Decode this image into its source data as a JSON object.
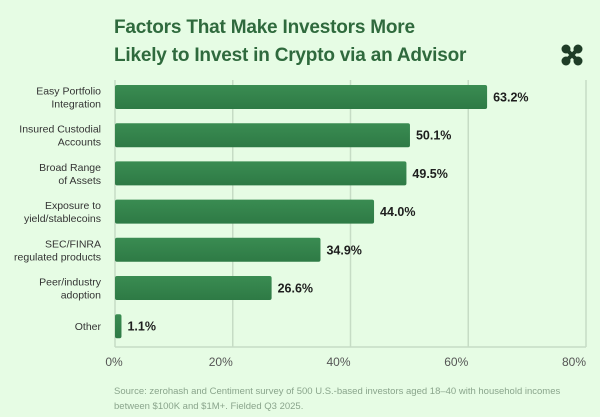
{
  "chart_data": {
    "type": "bar",
    "orientation": "horizontal",
    "title": "Factors That Make Investors More Likely to Invest in Crypto via an Advisor",
    "title_lines": [
      "Factors That Make Investors More",
      "Likely to Invest in Crypto via an Advisor"
    ],
    "categories": [
      [
        "Easy Portfolio",
        "Integration"
      ],
      [
        "Insured Custodial",
        "Accounts"
      ],
      [
        "Broad Range",
        "of Assets"
      ],
      [
        "Exposure to",
        "yield/stablecoins"
      ],
      [
        "SEC/FINRA",
        "regulated products"
      ],
      [
        "Peer/industry",
        "adoption"
      ],
      [
        "Other"
      ]
    ],
    "values": [
      63.2,
      50.1,
      49.5,
      44.0,
      34.9,
      26.6,
      1.1
    ],
    "value_labels": [
      "63.2%",
      "50.1%",
      "49.5%",
      "44.0%",
      "34.9%",
      "26.6%",
      "1.1%"
    ],
    "xlim": [
      0,
      80
    ],
    "xticks": [
      0,
      20,
      40,
      60,
      80
    ],
    "xtick_labels": [
      "0%",
      "20%",
      "40%",
      "60%",
      "80%"
    ],
    "grid": true,
    "bar_color": "#2e7a45",
    "source": "Source: zerohash and Centiment survey of 500 U.S.-based investors aged 18–40 with household incomes between $100K and $1M+. Fielded Q3 2025."
  }
}
